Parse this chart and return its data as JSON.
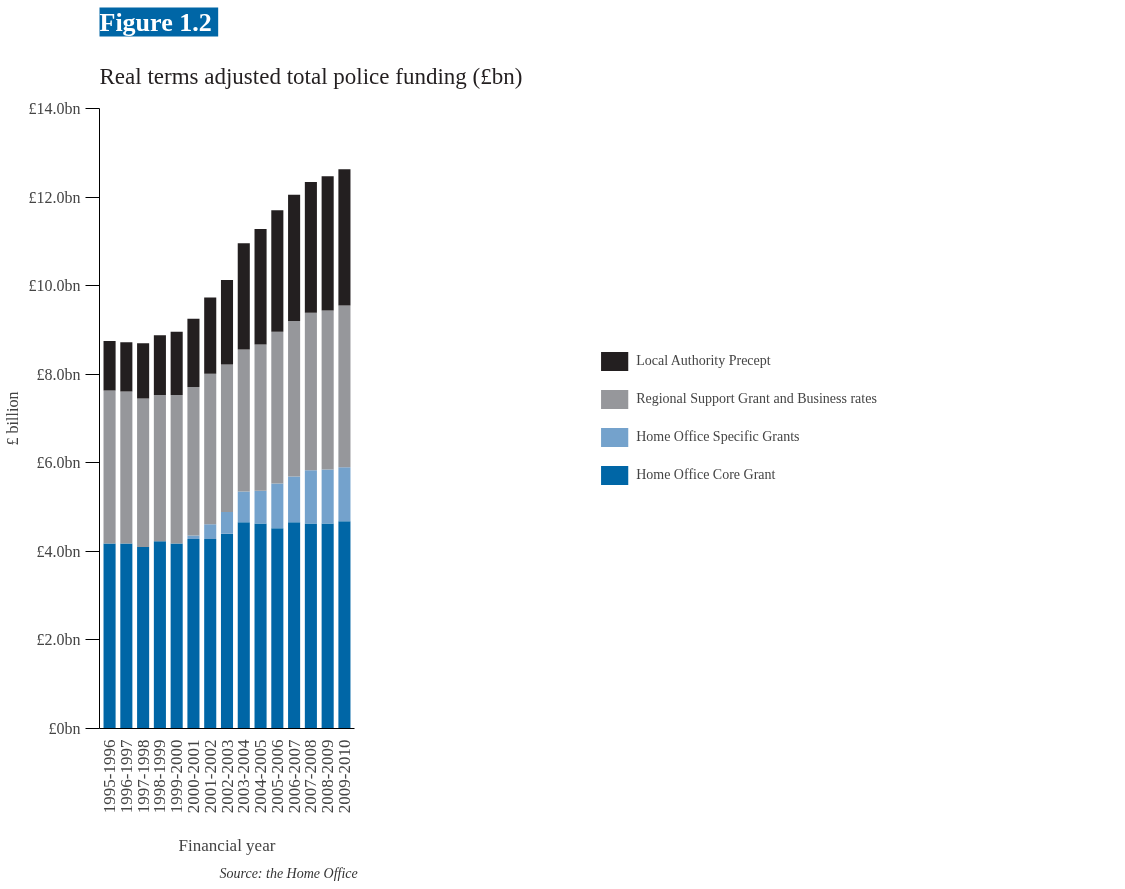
{
  "chart_data": {
    "type": "bar",
    "title": "Figure 1.2",
    "subtitle": "Real terms adjusted total police funding (£bn)",
    "xlabel": "Financial year",
    "ylabel": "£ billion",
    "annotations": [
      "Source: the Home Office"
    ],
    "categories": [
      "1995-1996",
      "1996-1997",
      "1997-1998",
      "1998-1999",
      "1999-2000",
      "2000-2001",
      "2001-2002",
      "2002-2003",
      "2003-2004",
      "2004-2005",
      "2005-2006",
      "2006-2007",
      "2007-2008",
      "2008-2009",
      "2009-2010"
    ],
    "stacked": true,
    "series": [
      {
        "name": "Home Office Core Grant",
        "color": "#0066a6",
        "values": [
          4.18,
          4.18,
          4.1,
          4.23,
          4.18,
          4.28,
          4.28,
          4.4,
          4.66,
          4.63,
          4.52,
          4.66,
          4.63,
          4.63,
          4.68
        ]
      },
      {
        "name": "Home Office Specific Grants",
        "color": "#74a2cc",
        "values": [
          0,
          0,
          0,
          0,
          0,
          0.08,
          0.33,
          0.49,
          0.69,
          0.74,
          1.01,
          1.03,
          1.2,
          1.22,
          1.22
        ]
      },
      {
        "name": "Regional Support Grant and Business rates",
        "color": "#96979b",
        "values": [
          3.45,
          3.43,
          3.35,
          3.3,
          3.35,
          3.35,
          3.4,
          3.33,
          3.21,
          3.3,
          3.43,
          3.51,
          3.56,
          3.59,
          3.65
        ]
      },
      {
        "name": "Local Authority Precept",
        "color": "#231f20",
        "values": [
          1.12,
          1.11,
          1.25,
          1.35,
          1.43,
          1.54,
          1.72,
          1.91,
          2.4,
          2.61,
          2.74,
          2.85,
          2.95,
          3.03,
          3.08
        ]
      }
    ],
    "ylim": [
      0,
      14
    ],
    "yticks": [
      {
        "value": 0,
        "label": "£0bn"
      },
      {
        "value": 2,
        "label": "£2.0bn"
      },
      {
        "value": 4,
        "label": "£4.0bn"
      },
      {
        "value": 6,
        "label": "£6.0bn"
      },
      {
        "value": 8,
        "label": "£8.0bn"
      },
      {
        "value": 10,
        "label": "£10.0bn"
      },
      {
        "value": 12,
        "label": "£12.0bn"
      },
      {
        "value": 14,
        "label": "£14.0bn"
      }
    ],
    "grid": false,
    "legend": "right"
  }
}
